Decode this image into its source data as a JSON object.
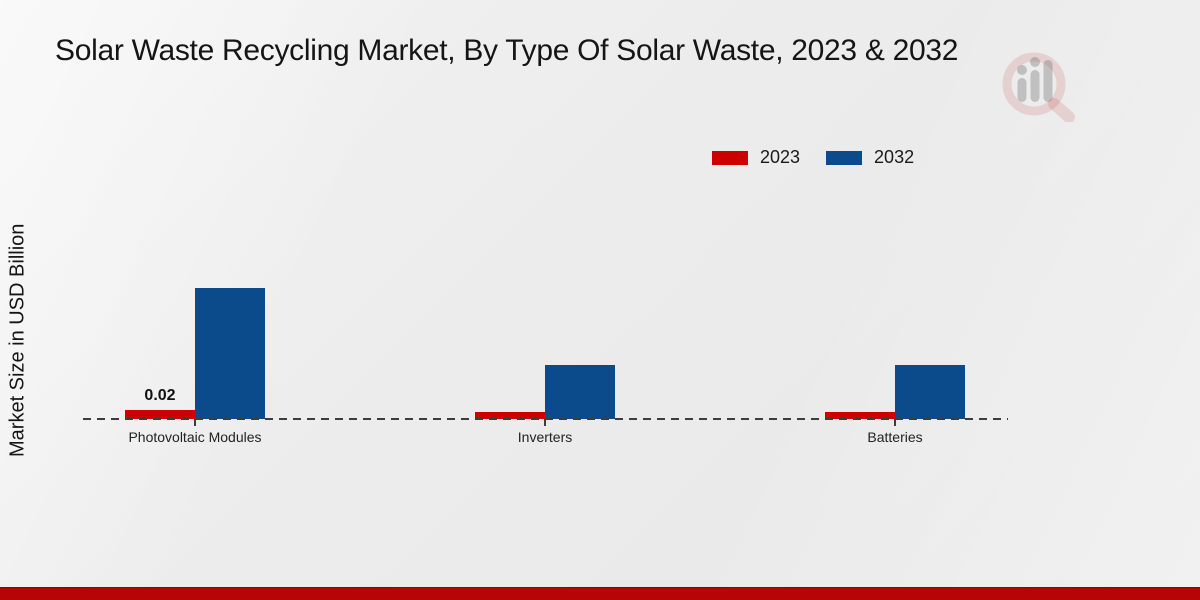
{
  "chart_data": {
    "type": "bar",
    "title": "Solar Waste Recycling Market, By Type Of Solar Waste, 2023 & 2032",
    "ylabel": "Market Size in USD Billion",
    "xlabel": "",
    "categories": [
      "Photovoltaic Modules",
      "Inverters",
      "Batteries"
    ],
    "series": [
      {
        "name": "2023",
        "color": "#cc0000",
        "values": [
          0.02,
          0.015,
          0.015
        ],
        "bar_labels": [
          "0.02",
          "",
          ""
        ]
      },
      {
        "name": "2032",
        "color": "#0b4b8c",
        "values": [
          0.29,
          0.12,
          0.12
        ],
        "bar_labels": [
          "",
          "",
          ""
        ]
      }
    ],
    "ylim": [
      0,
      0.32
    ],
    "grid": false,
    "legend_position": "top-right",
    "baseline_style": "dashed"
  },
  "watermark": {
    "name": "magnifier-bar-chart-logo"
  },
  "footer": {
    "accent_color": "#b70404"
  }
}
